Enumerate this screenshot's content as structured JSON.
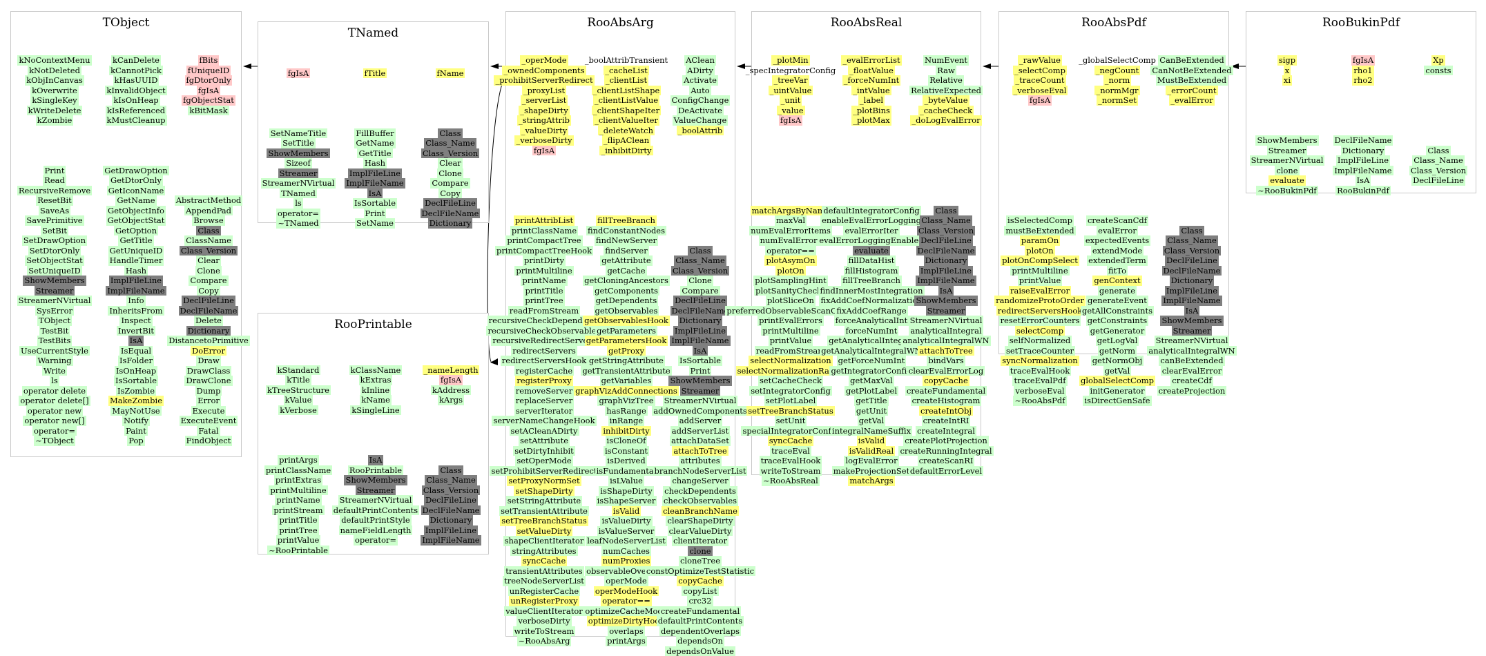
{
  "colors": {
    "green": "#ccffcc",
    "yellow": "#ffff80",
    "pink": "#ffc8c8",
    "gray": "#7f7f7f",
    "border": "#c8c8c8",
    "arrow": "#000000"
  },
  "classes": [
    {
      "id": "TObject",
      "title": "TObject",
      "columns": [
        [
          "kNoContextMenu",
          "kNotDeleted",
          "kObjInCanvas",
          "kOverwrite",
          "kSingleKey",
          "kWriteDelete",
          "kZombie",
          "",
          "",
          "",
          "",
          "Print",
          "Read",
          "RecursiveRemove",
          "ResetBit",
          "SaveAs",
          "SavePrimitive",
          "SetBit",
          "SetDrawOption",
          "SetDtorOnly",
          "SetObjectStat",
          "SetUniqueID",
          "ShowMembers",
          "Streamer",
          "StreamerNVirtual",
          "SysError",
          "TObject",
          "TestBit",
          "TestBits",
          "UseCurrentStyle",
          "Warning",
          "Write",
          "ls",
          "operator delete",
          "operator delete[]",
          "operator new",
          "operator new[]",
          "operator=",
          "~TObject"
        ],
        [
          "kCanDelete",
          "kCannotPick",
          "kHasUUID",
          "kInvalidObject",
          "kIsOnHeap",
          "kIsReferenced",
          "kMustCleanup",
          "",
          "",
          "",
          "",
          "GetDrawOption",
          "GetDtorOnly",
          "GetIconName",
          "GetName",
          "GetObjectInfo",
          "GetObjectStat",
          "GetOption",
          "GetTitle",
          "GetUniqueID",
          "HandleTimer",
          "Hash",
          "ImplFileLine",
          "ImplFileName",
          "Info",
          "InheritsFrom",
          "Inspect",
          "InvertBit",
          "IsA",
          "IsEqual",
          "IsFolder",
          "IsOnHeap",
          "IsSortable",
          "IsZombie",
          "MakeZombie",
          "MayNotUse",
          "Notify",
          "Paint",
          "Pop"
        ],
        [
          "fBits",
          "fUniqueID",
          "fgDtorOnly",
          "fgIsA",
          "fgObjectStat",
          "kBitMask",
          "",
          "",
          "",
          "",
          "",
          "",
          "",
          "",
          "AbstractMethod",
          "AppendPad",
          "Browse",
          "Class",
          "ClassName",
          "Class_Version",
          "Clear",
          "Clone",
          "Compare",
          "Copy",
          "DeclFileLine",
          "DeclFileName",
          "Delete",
          "Dictionary",
          "DistancetoPrimitive",
          "DoError",
          "Draw",
          "DrawClass",
          "DrawClone",
          "Dump",
          "Error",
          "Execute",
          "ExecuteEvent",
          "Fatal",
          "FindObject"
        ]
      ]
    },
    {
      "id": "TNamed",
      "title": "TNamed",
      "columns": [
        [
          "",
          "fgIsA",
          "",
          "",
          "",
          "",
          "",
          "SetNameTitle",
          "SetTitle",
          "ShowMembers",
          "Sizeof",
          "Streamer",
          "StreamerNVirtual",
          "TNamed",
          "ls",
          "operator=",
          "~TNamed"
        ],
        [
          "",
          "fTitle",
          "",
          "",
          "",
          "",
          "",
          "FillBuffer",
          "GetName",
          "GetTitle",
          "Hash",
          "ImplFileLine",
          "ImplFileName",
          "IsA",
          "IsSortable",
          "Print",
          "SetName"
        ],
        [
          "",
          "fName",
          "",
          "",
          "",
          "",
          "",
          "Class",
          "Class_Name",
          "Class_Version",
          "Clear",
          "Clone",
          "Compare",
          "Copy",
          "DeclFileLine",
          "DeclFileName",
          "Dictionary"
        ]
      ]
    },
    {
      "id": "RooPrintable",
      "title": "RooPrintable",
      "columns": [
        [
          "",
          "kStandard",
          "kTitle",
          "kTreeStructure",
          "kValue",
          "kVerbose",
          "",
          "",
          "",
          "",
          "printArgs",
          "printClassName",
          "printExtras",
          "printMultiline",
          "printName",
          "printStream",
          "printTitle",
          "printTree",
          "printValue",
          "~RooPrintable"
        ],
        [
          "",
          "kClassName",
          "kExtras",
          "kInline",
          "kName",
          "kSingleLine",
          "",
          "",
          "",
          "",
          "IsA",
          "RooPrintable",
          "ShowMembers",
          "Streamer",
          "StreamerNVirtual",
          "defaultPrintContents",
          "defaultPrintStyle",
          "nameFieldLength",
          "operator="
        ],
        [
          "",
          "_nameLength",
          "fgIsA",
          "kAddress",
          "kArgs",
          "",
          "",
          "",
          "",
          "",
          "",
          "Class",
          "Class_Name",
          "Class_Version",
          "DeclFileLine",
          "DeclFileName",
          "Dictionary",
          "ImplFileLine",
          "ImplFileName"
        ]
      ]
    },
    {
      "id": "RooAbsArg",
      "title": "RooAbsArg",
      "columns": [
        [
          "_operMode",
          "_ownedComponents",
          "_prohibitServerRedirect",
          "_proxyList",
          "_serverList",
          "_shapeDirty",
          "_stringAttrib",
          "_valueDirty",
          "_verboseDirty",
          "fgIsA",
          "",
          "",
          "",
          "",
          "",
          "",
          "printAttribList",
          "printClassName",
          "printCompactTree",
          "printCompactTreeHook",
          "printDirty",
          "printMultiline",
          "printName",
          "printTitle",
          "printTree",
          "readFromStream",
          "recursiveCheckDependents",
          "recursiveCheckObservables",
          "recursiveRedirectServers",
          "redirectServers",
          "redirectServersHook",
          "registerCache",
          "registerProxy",
          "removeServer",
          "replaceServer",
          "serverIterator",
          "serverNameChangeHook",
          "setACleanADirty",
          "setAttribute",
          "setDirtyInhibit",
          "setOperMode",
          "setProhibitServerRedirect",
          "setProxyNormSet",
          "setShapeDirty",
          "setStringAttribute",
          "setTransientAttribute",
          "setTreeBranchStatus",
          "setValueDirty",
          "shapeClientIterator",
          "stringAttributes",
          "syncCache",
          "transientAttributes",
          "treeNodeServerList",
          "unRegisterCache",
          "unRegisterProxy",
          "valueClientIterator",
          "verboseDirty",
          "writeToStream",
          "~RooAbsArg"
        ],
        [
          "_boolAttribTransient",
          "_cacheList",
          "_clientList",
          "_clientListShape",
          "_clientListValue",
          "_clientShapeIter",
          "_clientValueIter",
          "_deleteWatch",
          "_flipAClean",
          "_inhibitDirty",
          "",
          "",
          "",
          "",
          "",
          "",
          "fillTreeBranch",
          "findConstantNodes",
          "findNewServer",
          "findServer",
          "getAttribute",
          "getCache",
          "getCloningAncestors",
          "getComponents",
          "getDependents",
          "getObservables",
          "getObservablesHook",
          "getParameters",
          "getParametersHook",
          "getProxy",
          "getStringAttribute",
          "getTransientAttribute",
          "getVariables",
          "graphVizAddConnections",
          "graphVizTree",
          "hasRange",
          "inRange",
          "inhibitDirty",
          "isCloneOf",
          "isConstant",
          "isDerived",
          "isFundamental",
          "isLValue",
          "isShapeDirty",
          "isShapeServer",
          "isValid",
          "isValueDirty",
          "isValueServer",
          "leafNodeServerList",
          "numCaches",
          "numProxies",
          "observableOverlaps",
          "operMode",
          "operModeHook",
          "operator==",
          "optimizeCacheMode",
          "optimizeDirtyHook",
          "overlaps",
          "printArgs"
        ],
        [
          "AClean",
          "ADirty",
          "Activate",
          "Auto",
          "ConfigChange",
          "DeActivate",
          "ValueChange",
          "_boolAttrib",
          "",
          "",
          "",
          "",
          "",
          "",
          "",
          "",
          "",
          "",
          "",
          "Class",
          "Class_Name",
          "Class_Version",
          "Clone",
          "Compare",
          "DeclFileLine",
          "DeclFileName",
          "Dictionary",
          "ImplFileLine",
          "ImplFileName",
          "IsA",
          "IsSortable",
          "Print",
          "ShowMembers",
          "Streamer",
          "StreamerNVirtual",
          "addOwnedComponents",
          "addServer",
          "addServerList",
          "attachDataSet",
          "attachToTree",
          "attributes",
          "branchNodeServerList",
          "changeServer",
          "checkDependents",
          "checkObservables",
          "cleanBranchName",
          "clearShapeDirty",
          "clearValueDirty",
          "clientIterator",
          "clone",
          "cloneTree",
          "constOptimizeTestStatistic",
          "copyCache",
          "copyList",
          "crc32",
          "createFundamental",
          "defaultPrintContents",
          "dependentOverlaps",
          "dependsOn",
          "dependsOnValue"
        ]
      ]
    },
    {
      "id": "RooAbsReal",
      "title": "RooAbsReal",
      "columns": [
        [
          "_plotMin",
          "_specIntegratorConfig",
          "_treeVar",
          "_uintValue",
          "_unit",
          "_value",
          "fgIsA",
          "",
          "",
          "",
          "",
          "",
          "",
          "",
          "",
          "matchArgsByName",
          "maxVal",
          "numEvalErrorItems",
          "numEvalErrors",
          "operator==",
          "plotAsymOn",
          "plotOn",
          "plotSamplingHint",
          "plotSanityChecks",
          "plotSliceOn",
          "preferredObservableScanOrder",
          "printEvalErrors",
          "printMultiline",
          "printValue",
          "readFromStream",
          "selectNormalization",
          "selectNormalizationRange",
          "setCacheCheck",
          "setIntegratorConfig",
          "setPlotLabel",
          "setTreeBranchStatus",
          "setUnit",
          "specialIntegratorConfig",
          "syncCache",
          "traceEval",
          "traceEvalHook",
          "writeToStream",
          "~RooAbsReal"
        ],
        [
          "_evalErrorList",
          "_floatValue",
          "_forceNumInt",
          "_intValue",
          "_label",
          "_plotBins",
          "_plotMax",
          "",
          "",
          "",
          "",
          "",
          "",
          "",
          "",
          "defaultIntegratorConfig",
          "enableEvalErrorLogging",
          "evalErrorIter",
          "evalErrorLoggingEnabled",
          "evaluate",
          "fillDataHist",
          "fillHistogram",
          "fillTreeBranch",
          "findInnerMostIntegration",
          "fixAddCoefNormalization",
          "fixAddCoefRange",
          "forceAnalyticalInt",
          "forceNumInt",
          "getAnalyticalIntegral",
          "getAnalyticalIntegralWN",
          "getForceNumInt",
          "getIntegratorConfig",
          "getMaxVal",
          "getPlotLabel",
          "getTitle",
          "getUnit",
          "getVal",
          "integralNameSuffix",
          "isValid",
          "isValidReal",
          "logEvalError",
          "makeProjectionSet",
          "matchArgs"
        ],
        [
          "NumEvent",
          "Raw",
          "Relative",
          "RelativeExpected",
          "_byteValue",
          "_cacheCheck",
          "_doLogEvalError",
          "",
          "",
          "",
          "",
          "",
          "",
          "",
          "",
          "Class",
          "Class_Name",
          "Class_Version",
          "DeclFileLine",
          "DeclFileName",
          "Dictionary",
          "ImplFileLine",
          "ImplFileName",
          "IsA",
          "ShowMembers",
          "Streamer",
          "StreamerNVirtual",
          "analyticalIntegral",
          "analyticalIntegralWN",
          "attachToTree",
          "bindVars",
          "clearEvalErrorLog",
          "copyCache",
          "createFundamental",
          "createHistogram",
          "createIntObj",
          "createIntRI",
          "createIntegral",
          "createPlotProjection",
          "createRunningIntegral",
          "createScanRI",
          "defaultErrorLevel"
        ]
      ]
    },
    {
      "id": "RooAbsPdf",
      "title": "RooAbsPdf",
      "columns": [
        [
          "_rawValue",
          "_selectComp",
          "_traceCount",
          "_verboseEval",
          "fgIsA",
          "",
          "",
          "",
          "",
          "",
          "",
          "",
          "",
          "",
          "",
          "",
          "isSelectedComp",
          "mustBeExtended",
          "paramOn",
          "plotOn",
          "plotOnCompSelect",
          "printMultiline",
          "printValue",
          "raiseEvalError",
          "randomizeProtoOrder",
          "redirectServersHook",
          "resetErrorCounters",
          "selectComp",
          "selfNormalized",
          "setTraceCounter",
          "syncNormalization",
          "traceEvalHook",
          "traceEvalPdf",
          "verboseEval",
          "~RooAbsPdf"
        ],
        [
          "_globalSelectComp",
          "_negCount",
          "_norm",
          "_normMgr",
          "_normSet",
          "",
          "",
          "",
          "",
          "",
          "",
          "",
          "",
          "",
          "",
          "",
          "createScanCdf",
          "evalError",
          "expectedEvents",
          "extendMode",
          "extendedTerm",
          "fitTo",
          "genContext",
          "generate",
          "generateEvent",
          "getAllConstraints",
          "getConstraints",
          "getGenerator",
          "getLogVal",
          "getNorm",
          "getNormObj",
          "getVal",
          "globalSelectComp",
          "initGenerator",
          "isDirectGenSafe"
        ],
        [
          "CanBeExtended",
          "CanNotBeExtended",
          "MustBeExtended",
          "_errorCount",
          "_evalError",
          "",
          "",
          "",
          "",
          "",
          "",
          "",
          "",
          "",
          "",
          "",
          "",
          "Class",
          "Class_Name",
          "Class_Version",
          "DeclFileLine",
          "DeclFileName",
          "Dictionary",
          "ImplFileLine",
          "ImplFileName",
          "IsA",
          "ShowMembers",
          "Streamer",
          "StreamerNVirtual",
          "analyticalIntegralWN",
          "canBeExtended",
          "clearEvalError",
          "createCdf",
          "createProjection"
        ]
      ]
    },
    {
      "id": "RooBukinPdf",
      "title": "RooBukinPdf",
      "columns": [
        [
          "sigp",
          "x",
          "xi",
          "",
          "",
          "",
          "",
          "",
          "ShowMembers",
          "Streamer",
          "StreamerNVirtual",
          "clone",
          "evaluate",
          "~RooBukinPdf"
        ],
        [
          "fgIsA",
          "rho1",
          "rho2",
          "",
          "",
          "",
          "",
          "",
          "DeclFileName",
          "Dictionary",
          "ImplFileLine",
          "ImplFileName",
          "IsA",
          "RooBukinPdf"
        ],
        [
          "Xp",
          "consts",
          "",
          "",
          "",
          "",
          "",
          "",
          "",
          "Class",
          "Class_Name",
          "Class_Version",
          "DeclFileLine"
        ]
      ]
    }
  ]
}
